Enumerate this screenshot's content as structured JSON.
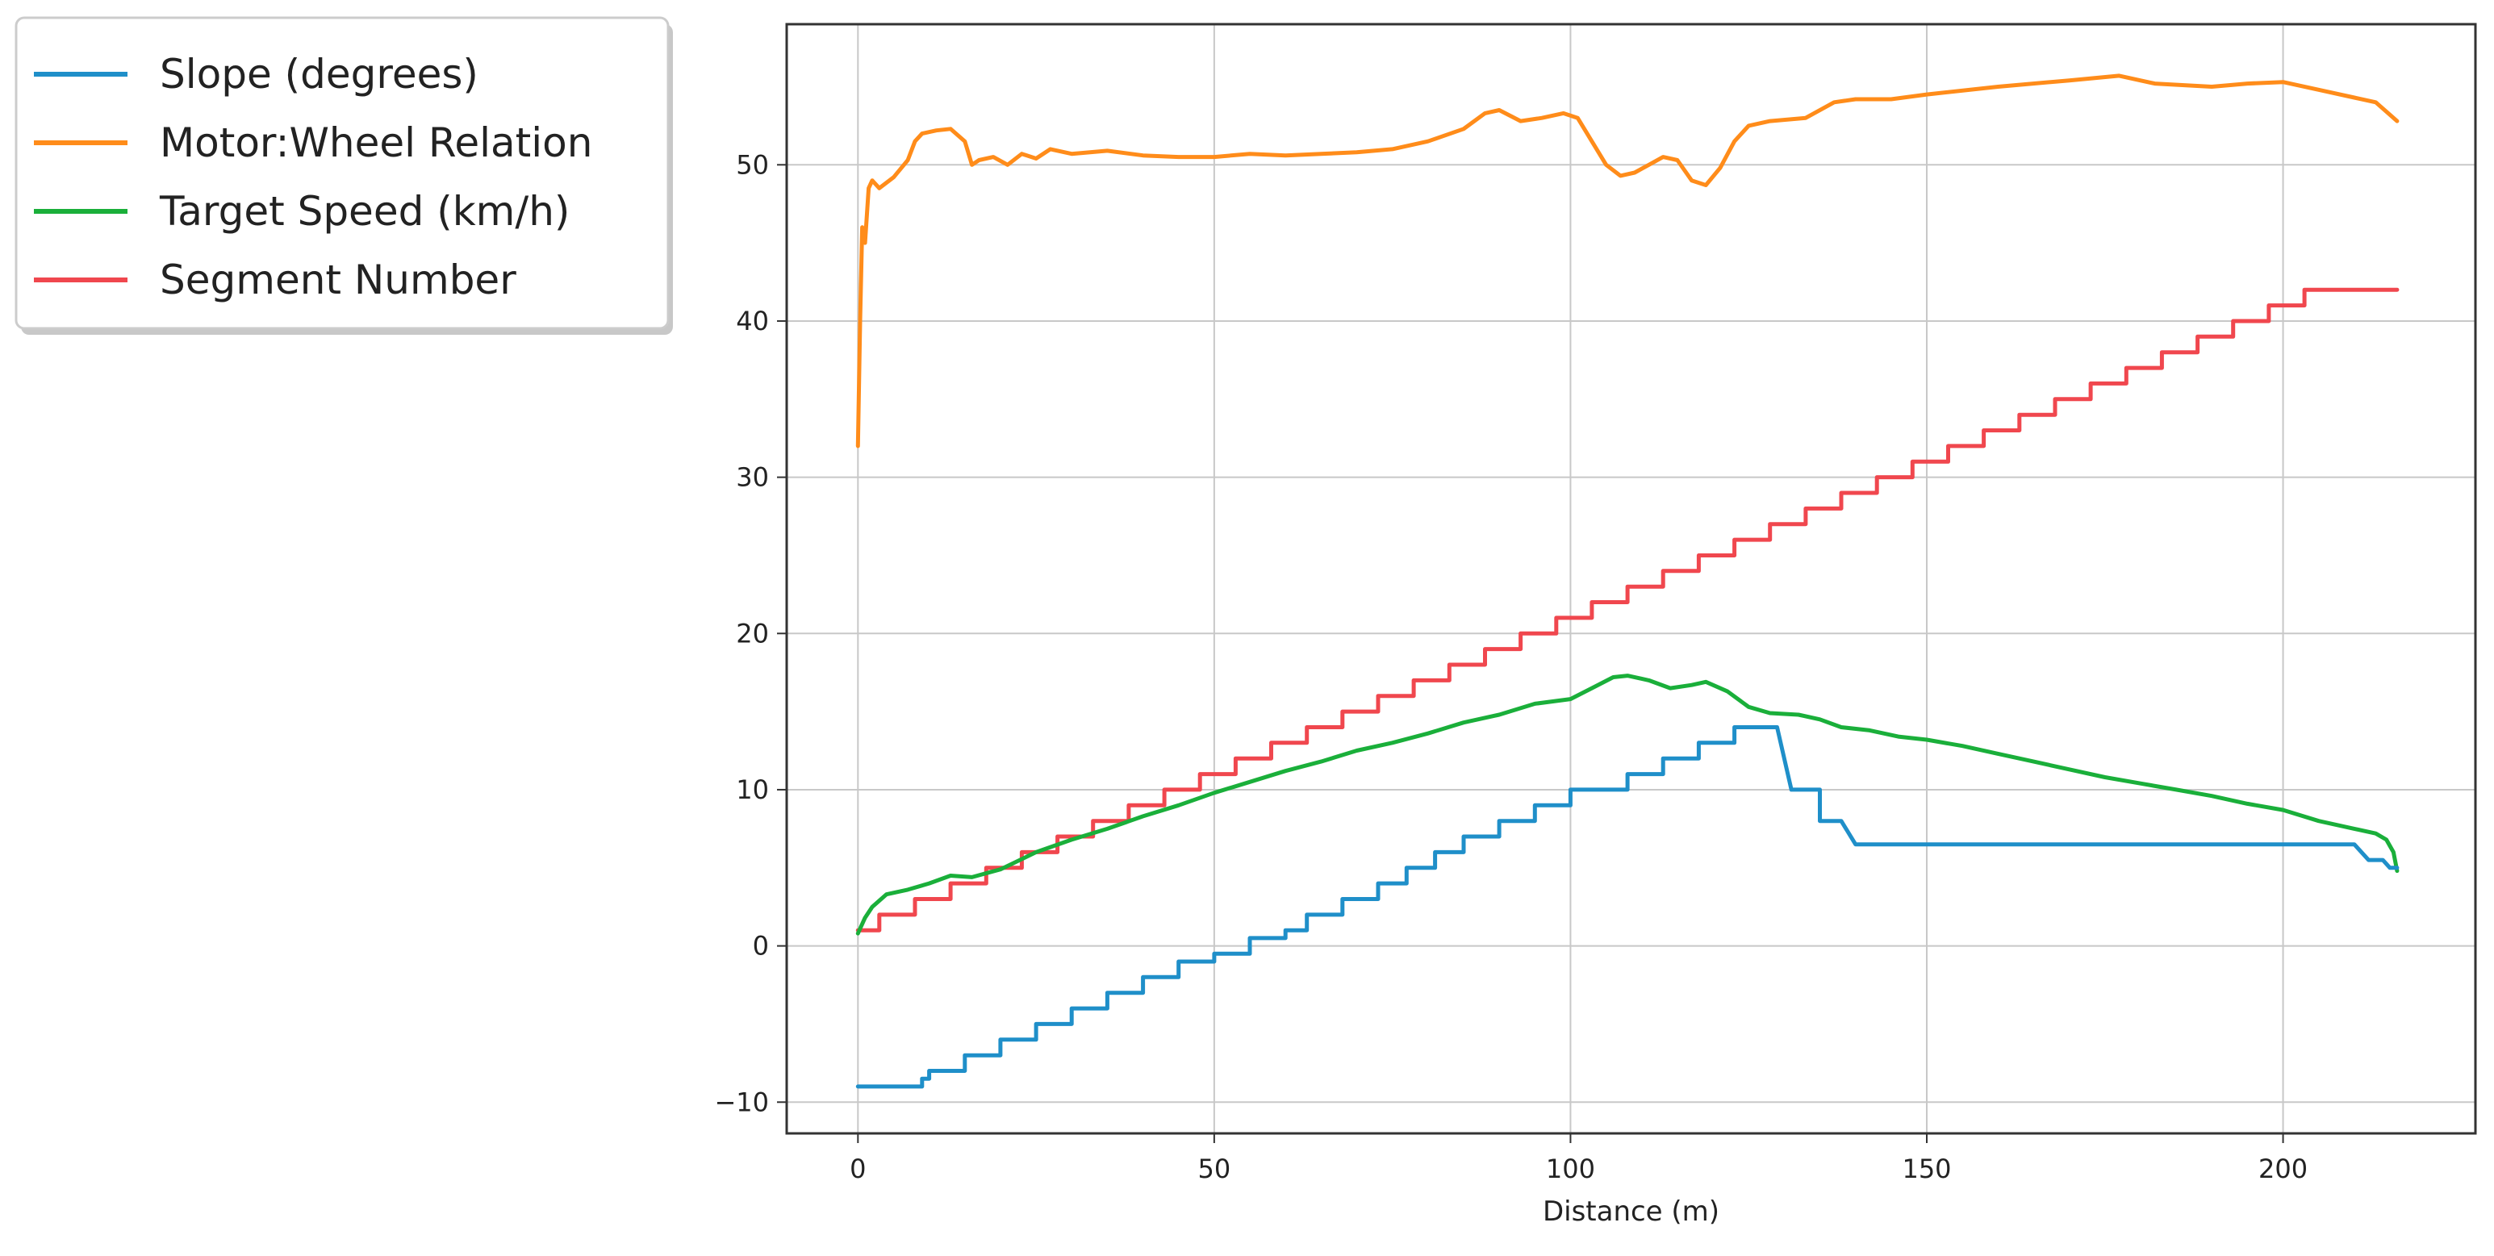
{
  "chart_data": {
    "type": "line",
    "title": "",
    "xlabel": "Distance (m)",
    "ylabel": "",
    "xlim": [
      -10,
      227
    ],
    "ylim": [
      -12,
      59
    ],
    "grid": true,
    "legend_position": "outside-top-left",
    "xticks": [
      0,
      50,
      100,
      150,
      200
    ],
    "yticks": [
      -10,
      0,
      10,
      20,
      30,
      40,
      50
    ],
    "legend": [
      "Slope (degrees)",
      "Motor:Wheel Relation",
      "Target Speed (km/h)",
      "Segment Number"
    ],
    "colors": {
      "slope": "#1f8fc9",
      "motor": "#ff8c1a",
      "speed": "#1aaf3a",
      "segment": "#f0474e",
      "grid": "#c8c8c8",
      "frame": "#333333"
    },
    "series": [
      {
        "name": "Slope (degrees)",
        "type": "step",
        "values": [
          [
            0,
            -9
          ],
          [
            9,
            -9
          ],
          [
            9,
            -8.5
          ],
          [
            10,
            -8.5
          ],
          [
            10,
            -8
          ],
          [
            15,
            -8
          ],
          [
            15,
            -7
          ],
          [
            20,
            -7
          ],
          [
            20,
            -6
          ],
          [
            25,
            -6
          ],
          [
            25,
            -5
          ],
          [
            30,
            -5
          ],
          [
            30,
            -4
          ],
          [
            35,
            -4
          ],
          [
            35,
            -3
          ],
          [
            40,
            -3
          ],
          [
            40,
            -2
          ],
          [
            45,
            -2
          ],
          [
            45,
            -1
          ],
          [
            50,
            -1
          ],
          [
            50,
            -0.5
          ],
          [
            55,
            -0.5
          ],
          [
            55,
            0.5
          ],
          [
            60,
            0.5
          ],
          [
            60,
            1
          ],
          [
            63,
            1
          ],
          [
            63,
            2
          ],
          [
            68,
            2
          ],
          [
            68,
            3
          ],
          [
            73,
            3
          ],
          [
            73,
            4
          ],
          [
            77,
            4
          ],
          [
            77,
            5
          ],
          [
            81,
            5
          ],
          [
            81,
            6
          ],
          [
            85,
            6
          ],
          [
            85,
            7
          ],
          [
            90,
            7
          ],
          [
            90,
            8
          ],
          [
            95,
            8
          ],
          [
            95,
            9
          ],
          [
            100,
            9
          ],
          [
            100,
            10
          ],
          [
            108,
            10
          ],
          [
            108,
            11
          ],
          [
            113,
            11
          ],
          [
            113,
            12
          ],
          [
            118,
            12
          ],
          [
            118,
            13
          ],
          [
            123,
            13
          ],
          [
            123,
            14
          ],
          [
            129,
            14
          ],
          [
            131,
            10
          ],
          [
            135,
            10
          ],
          [
            135,
            8
          ],
          [
            138,
            8
          ],
          [
            140,
            6.5
          ],
          [
            210,
            6.5
          ],
          [
            212,
            5.5
          ],
          [
            214,
            5.5
          ],
          [
            215,
            5
          ],
          [
            216,
            5
          ]
        ]
      },
      {
        "name": "Motor:Wheel Relation",
        "values": [
          [
            0,
            32
          ],
          [
            0.3,
            40
          ],
          [
            0.6,
            46
          ],
          [
            1,
            45
          ],
          [
            1.5,
            48.5
          ],
          [
            2,
            49
          ],
          [
            3,
            48.5
          ],
          [
            5,
            49.2
          ],
          [
            7,
            50.3
          ],
          [
            8,
            51.5
          ],
          [
            9,
            52
          ],
          [
            11,
            52.2
          ],
          [
            13,
            52.3
          ],
          [
            15,
            51.5
          ],
          [
            16,
            50
          ],
          [
            17,
            50.3
          ],
          [
            19,
            50.5
          ],
          [
            21,
            50
          ],
          [
            23,
            50.7
          ],
          [
            25,
            50.4
          ],
          [
            27,
            51
          ],
          [
            30,
            50.7
          ],
          [
            35,
            50.9
          ],
          [
            40,
            50.6
          ],
          [
            45,
            50.5
          ],
          [
            50,
            50.5
          ],
          [
            55,
            50.7
          ],
          [
            60,
            50.6
          ],
          [
            65,
            50.7
          ],
          [
            70,
            50.8
          ],
          [
            75,
            51
          ],
          [
            80,
            51.5
          ],
          [
            85,
            52.3
          ],
          [
            88,
            53.3
          ],
          [
            90,
            53.5
          ],
          [
            93,
            52.8
          ],
          [
            96,
            53
          ],
          [
            99,
            53.3
          ],
          [
            101,
            53
          ],
          [
            103,
            51.5
          ],
          [
            105,
            50
          ],
          [
            107,
            49.3
          ],
          [
            109,
            49.5
          ],
          [
            111,
            50
          ],
          [
            113,
            50.5
          ],
          [
            115,
            50.3
          ],
          [
            117,
            49
          ],
          [
            119,
            48.7
          ],
          [
            121,
            49.8
          ],
          [
            123,
            51.5
          ],
          [
            125,
            52.5
          ],
          [
            128,
            52.8
          ],
          [
            133,
            53
          ],
          [
            137,
            54
          ],
          [
            140,
            54.2
          ],
          [
            145,
            54.2
          ],
          [
            150,
            54.5
          ],
          [
            160,
            55
          ],
          [
            170,
            55.4
          ],
          [
            177,
            55.7
          ],
          [
            182,
            55.2
          ],
          [
            190,
            55
          ],
          [
            195,
            55.2
          ],
          [
            200,
            55.3
          ],
          [
            205,
            54.8
          ],
          [
            210,
            54.3
          ],
          [
            213,
            54
          ],
          [
            215,
            53.2
          ],
          [
            216,
            52.8
          ]
        ]
      },
      {
        "name": "Target Speed (km/h)",
        "values": [
          [
            0,
            0.8
          ],
          [
            1,
            1.8
          ],
          [
            2,
            2.5
          ],
          [
            4,
            3.3
          ],
          [
            7,
            3.6
          ],
          [
            10,
            4
          ],
          [
            13,
            4.5
          ],
          [
            16,
            4.4
          ],
          [
            20,
            4.9
          ],
          [
            25,
            6
          ],
          [
            30,
            6.8
          ],
          [
            35,
            7.5
          ],
          [
            40,
            8.3
          ],
          [
            45,
            9
          ],
          [
            50,
            9.8
          ],
          [
            55,
            10.5
          ],
          [
            60,
            11.2
          ],
          [
            65,
            11.8
          ],
          [
            70,
            12.5
          ],
          [
            75,
            13
          ],
          [
            80,
            13.6
          ],
          [
            85,
            14.3
          ],
          [
            90,
            14.8
          ],
          [
            95,
            15.5
          ],
          [
            100,
            15.8
          ],
          [
            103,
            16.5
          ],
          [
            106,
            17.2
          ],
          [
            108,
            17.3
          ],
          [
            111,
            17
          ],
          [
            114,
            16.5
          ],
          [
            117,
            16.7
          ],
          [
            119,
            16.9
          ],
          [
            122,
            16.3
          ],
          [
            125,
            15.3
          ],
          [
            128,
            14.9
          ],
          [
            132,
            14.8
          ],
          [
            135,
            14.5
          ],
          [
            138,
            14
          ],
          [
            142,
            13.8
          ],
          [
            146,
            13.4
          ],
          [
            150,
            13.2
          ],
          [
            155,
            12.8
          ],
          [
            160,
            12.3
          ],
          [
            165,
            11.8
          ],
          [
            170,
            11.3
          ],
          [
            175,
            10.8
          ],
          [
            180,
            10.4
          ],
          [
            185,
            10
          ],
          [
            190,
            9.6
          ],
          [
            195,
            9.1
          ],
          [
            200,
            8.7
          ],
          [
            205,
            8
          ],
          [
            210,
            7.5
          ],
          [
            213,
            7.2
          ],
          [
            214.5,
            6.8
          ],
          [
            215.5,
            6
          ],
          [
            216,
            4.8
          ]
        ]
      },
      {
        "name": "Segment Number",
        "type": "step",
        "values": [
          [
            0,
            1
          ],
          [
            0,
            1
          ],
          [
            3,
            1
          ],
          [
            3,
            2
          ],
          [
            8,
            2
          ],
          [
            8,
            3
          ],
          [
            13,
            3
          ],
          [
            13,
            4
          ],
          [
            18,
            4
          ],
          [
            18,
            5
          ],
          [
            23,
            5
          ],
          [
            23,
            6
          ],
          [
            28,
            6
          ],
          [
            28,
            7
          ],
          [
            33,
            7
          ],
          [
            33,
            8
          ],
          [
            38,
            8
          ],
          [
            38,
            9
          ],
          [
            43,
            9
          ],
          [
            43,
            10
          ],
          [
            48,
            10
          ],
          [
            48,
            11
          ],
          [
            53,
            11
          ],
          [
            53,
            12
          ],
          [
            58,
            12
          ],
          [
            58,
            13
          ],
          [
            63,
            13
          ],
          [
            63,
            14
          ],
          [
            68,
            14
          ],
          [
            68,
            15
          ],
          [
            73,
            15
          ],
          [
            73,
            16
          ],
          [
            78,
            16
          ],
          [
            78,
            17
          ],
          [
            83,
            17
          ],
          [
            83,
            18
          ],
          [
            88,
            18
          ],
          [
            88,
            19
          ],
          [
            93,
            19
          ],
          [
            93,
            20
          ],
          [
            98,
            20
          ],
          [
            98,
            21
          ],
          [
            103,
            21
          ],
          [
            103,
            22
          ],
          [
            108,
            22
          ],
          [
            108,
            23
          ],
          [
            113,
            23
          ],
          [
            113,
            24
          ],
          [
            118,
            24
          ],
          [
            118,
            25
          ],
          [
            123,
            25
          ],
          [
            123,
            26
          ],
          [
            128,
            26
          ],
          [
            128,
            27
          ],
          [
            133,
            27
          ],
          [
            133,
            28
          ],
          [
            138,
            28
          ],
          [
            138,
            29
          ],
          [
            143,
            29
          ],
          [
            143,
            30
          ],
          [
            148,
            30
          ],
          [
            148,
            31
          ],
          [
            153,
            31
          ],
          [
            153,
            32
          ],
          [
            158,
            32
          ],
          [
            158,
            33
          ],
          [
            163,
            33
          ],
          [
            163,
            34
          ],
          [
            168,
            34
          ],
          [
            168,
            35
          ],
          [
            173,
            35
          ],
          [
            173,
            36
          ],
          [
            178,
            36
          ],
          [
            178,
            37
          ],
          [
            183,
            37
          ],
          [
            183,
            38
          ],
          [
            188,
            38
          ],
          [
            188,
            39
          ],
          [
            193,
            39
          ],
          [
            193,
            40
          ],
          [
            198,
            40
          ],
          [
            198,
            41
          ],
          [
            203,
            41
          ],
          [
            203,
            42
          ],
          [
            208,
            42
          ],
          [
            216,
            42
          ]
        ]
      }
    ]
  }
}
